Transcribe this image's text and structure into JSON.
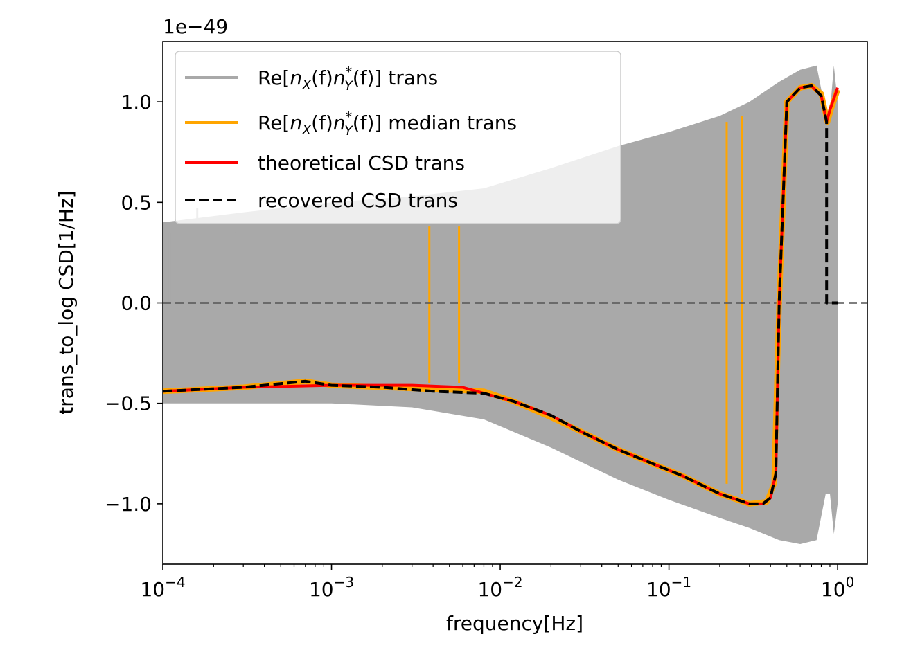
{
  "chart_data": {
    "type": "line",
    "title": "",
    "xlabel": "frequency[Hz]",
    "ylabel": "trans_to_log CSD[1/Hz]",
    "y_offset_label": "1e−49",
    "xscale": "log",
    "xlim": [
      0.0001,
      1.5
    ],
    "ylim": [
      -1.3,
      1.3
    ],
    "x_ticks": [
      {
        "value": 0.0001,
        "base": "10",
        "exp": "−4"
      },
      {
        "value": 0.001,
        "base": "10",
        "exp": "−3"
      },
      {
        "value": 0.01,
        "base": "10",
        "exp": "−2"
      },
      {
        "value": 0.1,
        "base": "10",
        "exp": "−1"
      },
      {
        "value": 1,
        "base": "10",
        "exp": "0"
      }
    ],
    "y_ticks": [
      {
        "value": -1.0,
        "label": "−1.0"
      },
      {
        "value": -0.5,
        "label": "−0.5"
      },
      {
        "value": 0.0,
        "label": "0.0"
      },
      {
        "value": 0.5,
        "label": "0.5"
      },
      {
        "value": 1.0,
        "label": "1.0"
      }
    ],
    "legend_location": "upper-left",
    "series": [
      {
        "name": "raw",
        "label_parts": {
          "pre": "Re[",
          "n1": "n",
          "sub1": "X",
          "mid": "(f)",
          "n2": "n",
          "sub2": "Y",
          "sup2": "*",
          "post": "(f)] trans"
        },
        "color": "#a9a9a9",
        "style": "band",
        "x": [
          0.0001,
          0.0003,
          0.001,
          0.003,
          0.008,
          0.02,
          0.05,
          0.1,
          0.2,
          0.3,
          0.45,
          0.6,
          0.75,
          0.85,
          0.9,
          0.95,
          1.0
        ],
        "upper": [
          0.4,
          0.45,
          0.5,
          0.53,
          0.57,
          0.67,
          0.78,
          0.85,
          0.93,
          1.0,
          1.1,
          1.16,
          1.18,
          0.95,
          0.95,
          1.18,
          1.0
        ],
        "lower": [
          -0.5,
          -0.5,
          -0.5,
          -0.52,
          -0.58,
          -0.72,
          -0.88,
          -0.98,
          -1.07,
          -1.12,
          -1.18,
          -1.2,
          -1.18,
          -0.95,
          -0.95,
          -1.15,
          -1.0
        ]
      },
      {
        "name": "median",
        "label_parts": {
          "pre": "Re[",
          "n1": "n",
          "sub1": "X",
          "mid": "(f)",
          "n2": "n",
          "sub2": "Y",
          "sup2": "*",
          "post": "(f)] median trans"
        },
        "color": "#ffa500",
        "style": "line",
        "x": [
          0.0001,
          0.0003,
          0.0007,
          0.001,
          0.002,
          0.004,
          0.008,
          0.012,
          0.02,
          0.03,
          0.05,
          0.08,
          0.12,
          0.2,
          0.3,
          0.38,
          0.42,
          0.45,
          0.5,
          0.6,
          0.7,
          0.8,
          0.87,
          0.92,
          1.0
        ],
        "y": [
          -0.44,
          -0.42,
          -0.39,
          -0.41,
          -0.42,
          -0.43,
          -0.44,
          -0.49,
          -0.57,
          -0.64,
          -0.73,
          -0.8,
          -0.86,
          -0.95,
          -1.0,
          -0.99,
          -0.9,
          0.0,
          1.0,
          1.07,
          1.08,
          1.04,
          0.9,
          0.97,
          1.06
        ]
      },
      {
        "name": "theoretical",
        "label": "theoretical CSD trans",
        "color": "#ff0000",
        "style": "line",
        "x": [
          0.0001,
          0.0003,
          0.001,
          0.003,
          0.006,
          0.008,
          0.012,
          0.02,
          0.03,
          0.05,
          0.08,
          0.12,
          0.2,
          0.3,
          0.36,
          0.4,
          0.43,
          0.45,
          0.5,
          0.6,
          0.7,
          0.8,
          0.86,
          0.9,
          1.0
        ],
        "y": [
          -0.44,
          -0.42,
          -0.41,
          -0.41,
          -0.42,
          -0.45,
          -0.49,
          -0.56,
          -0.64,
          -0.73,
          -0.8,
          -0.86,
          -0.95,
          -1.0,
          -1.0,
          -0.97,
          -0.85,
          0.0,
          1.0,
          1.07,
          1.08,
          1.03,
          0.9,
          0.96,
          1.07
        ]
      },
      {
        "name": "recovered",
        "label": "recovered CSD trans",
        "color": "#000000",
        "style": "dashed",
        "x": [
          0.0001,
          0.0003,
          0.0007,
          0.001,
          0.002,
          0.004,
          0.008,
          0.012,
          0.02,
          0.03,
          0.05,
          0.08,
          0.12,
          0.2,
          0.3,
          0.36,
          0.4,
          0.43,
          0.45,
          0.5,
          0.6,
          0.7,
          0.8,
          0.86,
          0.86,
          0.9,
          1.0
        ],
        "y": [
          -0.44,
          -0.42,
          -0.39,
          -0.41,
          -0.42,
          -0.44,
          -0.45,
          -0.49,
          -0.56,
          -0.64,
          -0.73,
          -0.8,
          -0.86,
          -0.95,
          -1.0,
          -1.0,
          -0.97,
          -0.85,
          0.0,
          1.0,
          1.07,
          1.08,
          1.03,
          0.9,
          0.0,
          0.0,
          0.0
        ]
      }
    ],
    "reference_line": {
      "y": 0.0,
      "color": "#555555",
      "style": "dashed"
    },
    "spikes": [
      {
        "x": 0.00011,
        "from": 0.0,
        "to": 0.35,
        "color": "#a9a9a9"
      },
      {
        "x": 0.00013,
        "from": 0.0,
        "to": 0.4,
        "color": "#a9a9a9"
      },
      {
        "x": 0.00016,
        "from": 0.0,
        "to": 0.47,
        "color": "#a9a9a9"
      },
      {
        "x": 0.00027,
        "from": 0.0,
        "to": 0.35,
        "color": "#a9a9a9"
      },
      {
        "x": 0.0038,
        "from": -0.4,
        "to": 0.38,
        "color": "#ffa500"
      },
      {
        "x": 0.0057,
        "from": -0.4,
        "to": 0.38,
        "color": "#ffa500"
      },
      {
        "x": 0.22,
        "from": -0.9,
        "to": 0.9,
        "color": "#ffa500"
      },
      {
        "x": 0.27,
        "from": -0.95,
        "to": 0.93,
        "color": "#ffa500"
      }
    ]
  }
}
